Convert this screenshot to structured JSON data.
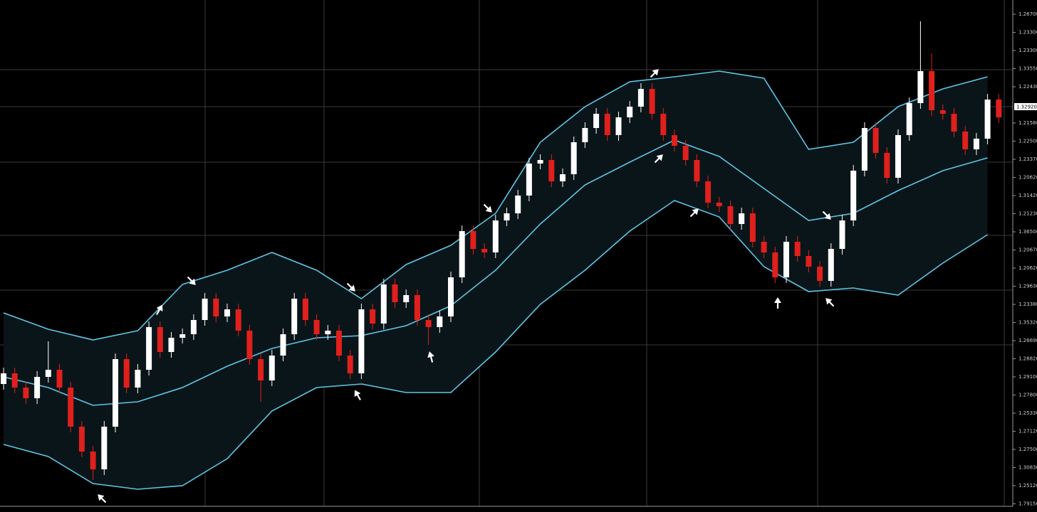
{
  "chart_data": {
    "type": "candlestick",
    "ylim": [
      1.1976,
      1.34
    ],
    "up_color": "#ffffff",
    "down_color": "#e0201c",
    "band_fill": "#0a1519",
    "background": "#000000",
    "grid": true,
    "open": [
      1.232,
      1.235,
      1.231,
      1.228,
      1.234,
      1.236,
      1.231,
      1.22,
      1.213,
      1.208,
      1.22,
      1.239,
      1.231,
      1.236,
      1.248,
      1.241,
      1.245,
      1.246,
      1.25,
      1.256,
      1.251,
      1.253,
      1.247,
      1.239,
      1.233,
      1.24,
      1.246,
      1.256,
      1.25,
      1.246,
      1.247,
      1.24,
      1.235,
      1.253,
      1.249,
      1.26,
      1.255,
      1.257,
      1.25,
      1.248,
      1.251,
      1.262,
      1.275,
      1.27,
      1.269,
      1.278,
      1.28,
      1.285,
      1.294,
      1.295,
      1.289,
      1.291,
      1.3,
      1.304,
      1.308,
      1.302,
      1.307,
      1.31,
      1.315,
      1.308,
      1.302,
      1.299,
      1.295,
      1.289,
      1.283,
      1.282,
      1.277,
      1.28,
      1.272,
      1.269,
      1.262,
      1.272,
      1.268,
      1.265,
      1.261,
      1.27,
      1.278,
      1.292,
      1.304,
      1.297,
      1.29,
      1.302,
      1.311,
      1.32,
      1.309,
      1.308,
      1.303,
      1.298,
      1.301,
      1.312
    ],
    "high": [
      1.2366,
      1.2366,
      1.2326,
      1.2356,
      1.244,
      1.2376,
      1.2326,
      1.2216,
      1.2146,
      1.2216,
      1.2406,
      1.2406,
      1.2376,
      1.2496,
      1.2496,
      1.2466,
      1.2476,
      1.2516,
      1.2576,
      1.2576,
      1.2546,
      1.2546,
      1.2486,
      1.2406,
      1.2416,
      1.2476,
      1.2576,
      1.2576,
      1.2516,
      1.2486,
      1.2486,
      1.2416,
      1.2546,
      1.2546,
      1.2616,
      1.2616,
      1.2586,
      1.2586,
      1.2516,
      1.2526,
      1.2636,
      1.2766,
      1.2766,
      1.2716,
      1.2796,
      1.2816,
      1.2866,
      1.2956,
      1.2966,
      1.2966,
      1.2926,
      1.3016,
      1.3056,
      1.3096,
      1.3096,
      1.3086,
      1.3116,
      1.3166,
      1.3166,
      1.3096,
      1.3036,
      1.3006,
      1.2966,
      1.2906,
      1.2846,
      1.2836,
      1.2816,
      1.2816,
      1.2736,
      1.2706,
      1.2736,
      1.2736,
      1.2696,
      1.2666,
      1.2716,
      1.2796,
      1.2936,
      1.3056,
      1.3056,
      1.2986,
      1.3036,
      1.3126,
      1.334,
      1.325,
      1.3106,
      1.3096,
      1.3046,
      1.3026,
      1.3136,
      1.3136
    ],
    "low": [
      1.2304,
      1.2294,
      1.2264,
      1.2264,
      1.2324,
      1.2294,
      1.2184,
      1.2114,
      1.205,
      1.2064,
      1.2184,
      1.2294,
      1.2294,
      1.2344,
      1.2394,
      1.2394,
      1.2434,
      1.2444,
      1.2484,
      1.2494,
      1.2494,
      1.2454,
      1.2374,
      1.227,
      1.2314,
      1.2384,
      1.2444,
      1.2484,
      1.2444,
      1.2444,
      1.2384,
      1.2334,
      1.2334,
      1.2474,
      1.2474,
      1.2534,
      1.2534,
      1.2484,
      1.243,
      1.2464,
      1.2494,
      1.2604,
      1.2684,
      1.2674,
      1.2674,
      1.2764,
      1.2784,
      1.2834,
      1.2924,
      1.2874,
      1.2874,
      1.2894,
      1.2984,
      1.3024,
      1.3004,
      1.3004,
      1.3054,
      1.3084,
      1.3064,
      1.3004,
      1.2974,
      1.2934,
      1.2874,
      1.2814,
      1.2804,
      1.2754,
      1.2754,
      1.2704,
      1.2674,
      1.2604,
      1.2604,
      1.2664,
      1.2634,
      1.2594,
      1.2594,
      1.2684,
      1.2764,
      1.2904,
      1.2954,
      1.2884,
      1.2884,
      1.3004,
      1.3094,
      1.3074,
      1.3064,
      1.3014,
      1.2964,
      1.2964,
      1.2994,
      1.3054
    ],
    "close": [
      1.235,
      1.231,
      1.228,
      1.234,
      1.236,
      1.231,
      1.22,
      1.213,
      1.208,
      1.22,
      1.239,
      1.231,
      1.236,
      1.248,
      1.241,
      1.245,
      1.246,
      1.25,
      1.256,
      1.251,
      1.253,
      1.247,
      1.239,
      1.233,
      1.24,
      1.246,
      1.256,
      1.25,
      1.246,
      1.247,
      1.24,
      1.235,
      1.253,
      1.249,
      1.26,
      1.255,
      1.257,
      1.25,
      1.248,
      1.251,
      1.262,
      1.275,
      1.27,
      1.269,
      1.278,
      1.28,
      1.285,
      1.294,
      1.295,
      1.289,
      1.291,
      1.3,
      1.304,
      1.308,
      1.302,
      1.307,
      1.31,
      1.315,
      1.308,
      1.302,
      1.299,
      1.295,
      1.289,
      1.283,
      1.282,
      1.277,
      1.28,
      1.272,
      1.269,
      1.262,
      1.272,
      1.268,
      1.265,
      1.261,
      1.27,
      1.278,
      1.292,
      1.304,
      1.297,
      1.29,
      1.302,
      1.311,
      1.32,
      1.309,
      1.308,
      1.303,
      1.298,
      1.301,
      1.312,
      1.307
    ],
    "bands": [
      {
        "color": "#5ec6e6",
        "x": [
          0,
          4,
          8,
          12,
          16,
          20,
          24,
          28,
          32,
          36,
          40,
          44,
          48,
          52,
          56,
          60,
          64,
          68,
          72,
          76,
          80,
          84,
          88
        ],
        "values": [
          1.252,
          1.2474,
          1.2444,
          1.247,
          1.26,
          1.264,
          1.269,
          1.264,
          1.256,
          1.2656,
          1.271,
          1.28,
          1.3,
          1.31,
          1.317,
          1.3184,
          1.32,
          1.318,
          1.298,
          1.3,
          1.31,
          1.315,
          1.3184
        ]
      },
      {
        "color": "#5ec6e6",
        "x": [
          0,
          4,
          8,
          12,
          16,
          20,
          24,
          28,
          32,
          36,
          40,
          44,
          48,
          52,
          56,
          60,
          64,
          68,
          72,
          76,
          80,
          84,
          88
        ],
        "values": [
          1.234,
          1.231,
          1.226,
          1.227,
          1.231,
          1.237,
          1.242,
          1.245,
          1.2456,
          1.2484,
          1.254,
          1.264,
          1.277,
          1.288,
          1.2944,
          1.3006,
          1.296,
          1.287,
          1.278,
          1.28,
          1.2864,
          1.292,
          1.2956
        ]
      },
      {
        "color": "#5ec6e6",
        "x": [
          0,
          4,
          8,
          12,
          16,
          20,
          24,
          28,
          32,
          36,
          40,
          44,
          48,
          52,
          56,
          60,
          64,
          68,
          72,
          76,
          80,
          84,
          88
        ],
        "values": [
          1.215,
          1.2116,
          1.204,
          1.2024,
          1.2034,
          1.211,
          1.2244,
          1.231,
          1.232,
          1.2296,
          1.2296,
          1.241,
          1.2544,
          1.264,
          1.275,
          1.2836,
          1.279,
          1.265,
          1.258,
          1.259,
          1.257,
          1.266,
          1.274
        ]
      }
    ],
    "y_axis_labels": [
      "1.26700",
      "1.23300",
      "1.23300",
      "1.33550",
      "1.22430",
      "1.21580",
      "1.22500",
      "1.23370",
      "1.20620",
      "1.31420",
      "1.21230",
      "1.36500",
      "1.20670",
      "1.20620",
      "1.29630",
      "1.23380",
      "1.35320",
      "1.26690",
      "1.28820",
      "1.29100",
      "1.27800",
      "1.25330",
      "1.27120",
      "1.27500",
      "1.30830",
      "1.25120",
      "1.79150"
    ],
    "current_price_label": "1.32920"
  }
}
